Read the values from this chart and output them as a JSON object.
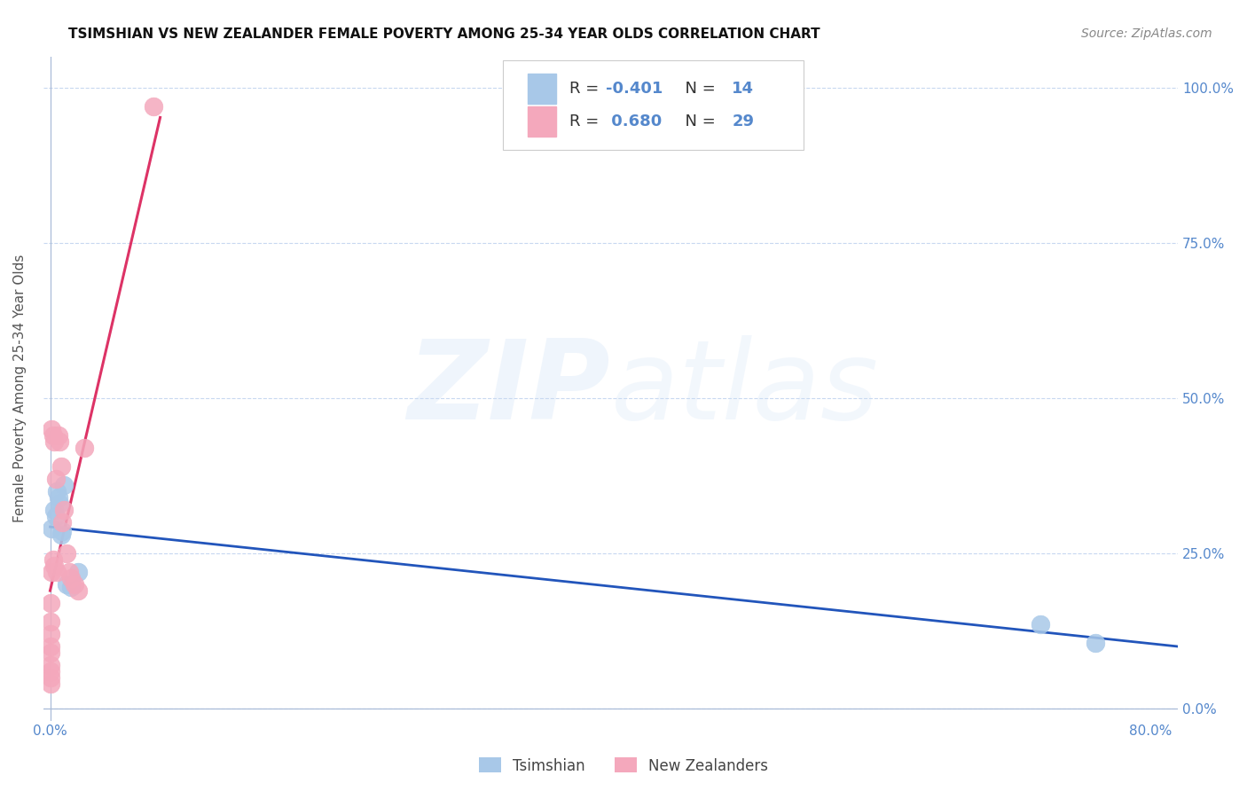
{
  "title": "TSIMSHIAN VS NEW ZEALANDER FEMALE POVERTY AMONG 25-34 YEAR OLDS CORRELATION CHART",
  "source": "Source: ZipAtlas.com",
  "ylabel": "Female Poverty Among 25-34 Year Olds",
  "xlim": [
    -0.005,
    0.82
  ],
  "ylim": [
    -0.02,
    1.05
  ],
  "xtick_vals": [
    0.0,
    0.8
  ],
  "xtick_labels": [
    "0.0%",
    "80.0%"
  ],
  "ytick_vals": [
    0.0,
    0.25,
    0.5,
    0.75,
    1.0
  ],
  "ytick_labels_right": [
    "0.0%",
    "25.0%",
    "50.0%",
    "75.0%",
    "100.0%"
  ],
  "grid_yticks": [
    0.0,
    0.25,
    0.5,
    0.75,
    1.0
  ],
  "watermark_zip": "ZIP",
  "watermark_atlas": "atlas",
  "tsimshian_color": "#a8c8e8",
  "nz_color": "#f4a8bc",
  "tsimshian_line_color": "#2255bb",
  "nz_line_color": "#dd3366",
  "grid_color": "#c8d8f0",
  "axis_color": "#aabcd8",
  "tick_color": "#5588cc",
  "legend_label_color": "#333333",
  "legend_value_color": "#4477cc",
  "legend_r_tsimshian": "-0.401",
  "legend_n_tsimshian": "14",
  "legend_r_nz": "0.680",
  "legend_n_nz": "29",
  "tsimshian_x": [
    0.001,
    0.003,
    0.004,
    0.005,
    0.006,
    0.007,
    0.008,
    0.009,
    0.01,
    0.012,
    0.015,
    0.02,
    0.72,
    0.76
  ],
  "tsimshian_y": [
    0.29,
    0.32,
    0.31,
    0.35,
    0.34,
    0.33,
    0.28,
    0.285,
    0.36,
    0.2,
    0.195,
    0.22,
    0.135,
    0.105
  ],
  "nz_x": [
    0.0,
    0.0,
    0.0,
    0.0,
    0.0,
    0.0,
    0.0,
    0.0,
    0.0,
    0.001,
    0.001,
    0.002,
    0.002,
    0.003,
    0.003,
    0.004,
    0.005,
    0.006,
    0.007,
    0.008,
    0.009,
    0.01,
    0.012,
    0.014,
    0.015,
    0.018,
    0.02,
    0.025,
    0.075
  ],
  "nz_y": [
    0.04,
    0.05,
    0.06,
    0.07,
    0.09,
    0.1,
    0.12,
    0.14,
    0.17,
    0.22,
    0.45,
    0.24,
    0.44,
    0.23,
    0.43,
    0.37,
    0.22,
    0.44,
    0.43,
    0.39,
    0.3,
    0.32,
    0.25,
    0.22,
    0.21,
    0.2,
    0.19,
    0.42,
    0.97
  ]
}
